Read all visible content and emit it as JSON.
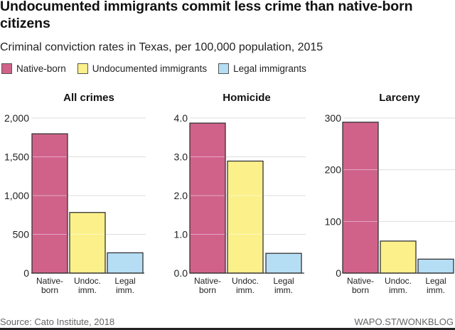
{
  "title": "Undocumented immigrants commit less crime than native-born citizens",
  "subtitle": "Criminal conviction rates in Texas, per 100,000 population, 2015",
  "legend": [
    {
      "label": "Native-born",
      "color": "#d0628a"
    },
    {
      "label": "Undocumented immigrants",
      "color": "#fbf08a"
    },
    {
      "label": "Legal immigrants",
      "color": "#b5def5"
    }
  ],
  "source": "Source: Cato Institute, 2018",
  "credit": "WAPO.ST/WONKBLOG",
  "chart_data": [
    {
      "type": "bar",
      "title": "All crimes",
      "categories": [
        "Native-\nborn",
        "Undoc.\nimm.",
        "Legal\nimm."
      ],
      "values": [
        1797,
        782,
        262
      ],
      "ylim": [
        0,
        2000
      ],
      "yticks": [
        0,
        500,
        1000,
        1500,
        2000
      ],
      "ytick_labels": [
        "0",
        "500",
        "1,000",
        "1,500",
        "2,000"
      ],
      "grid": true
    },
    {
      "type": "bar",
      "title": "Homicide",
      "categories": [
        "Native-\nborn",
        "Undoc.\nimm.",
        "Legal\nimm."
      ],
      "values": [
        3.87,
        2.89,
        0.51
      ],
      "ylim": [
        0,
        4
      ],
      "yticks": [
        0,
        1,
        2,
        3,
        4
      ],
      "ytick_labels": [
        "0.0",
        "1.0",
        "2.0",
        "3.0",
        "4.0"
      ],
      "grid": true
    },
    {
      "type": "bar",
      "title": "Larceny",
      "categories": [
        "Native-\nborn",
        "Undoc.\nimm.",
        "Legal\nimm."
      ],
      "values": [
        292,
        62,
        27
      ],
      "ylim": [
        0,
        300
      ],
      "yticks": [
        0,
        100,
        200,
        300
      ],
      "ytick_labels": [
        "0",
        "100",
        "200",
        "300"
      ],
      "grid": true
    }
  ]
}
